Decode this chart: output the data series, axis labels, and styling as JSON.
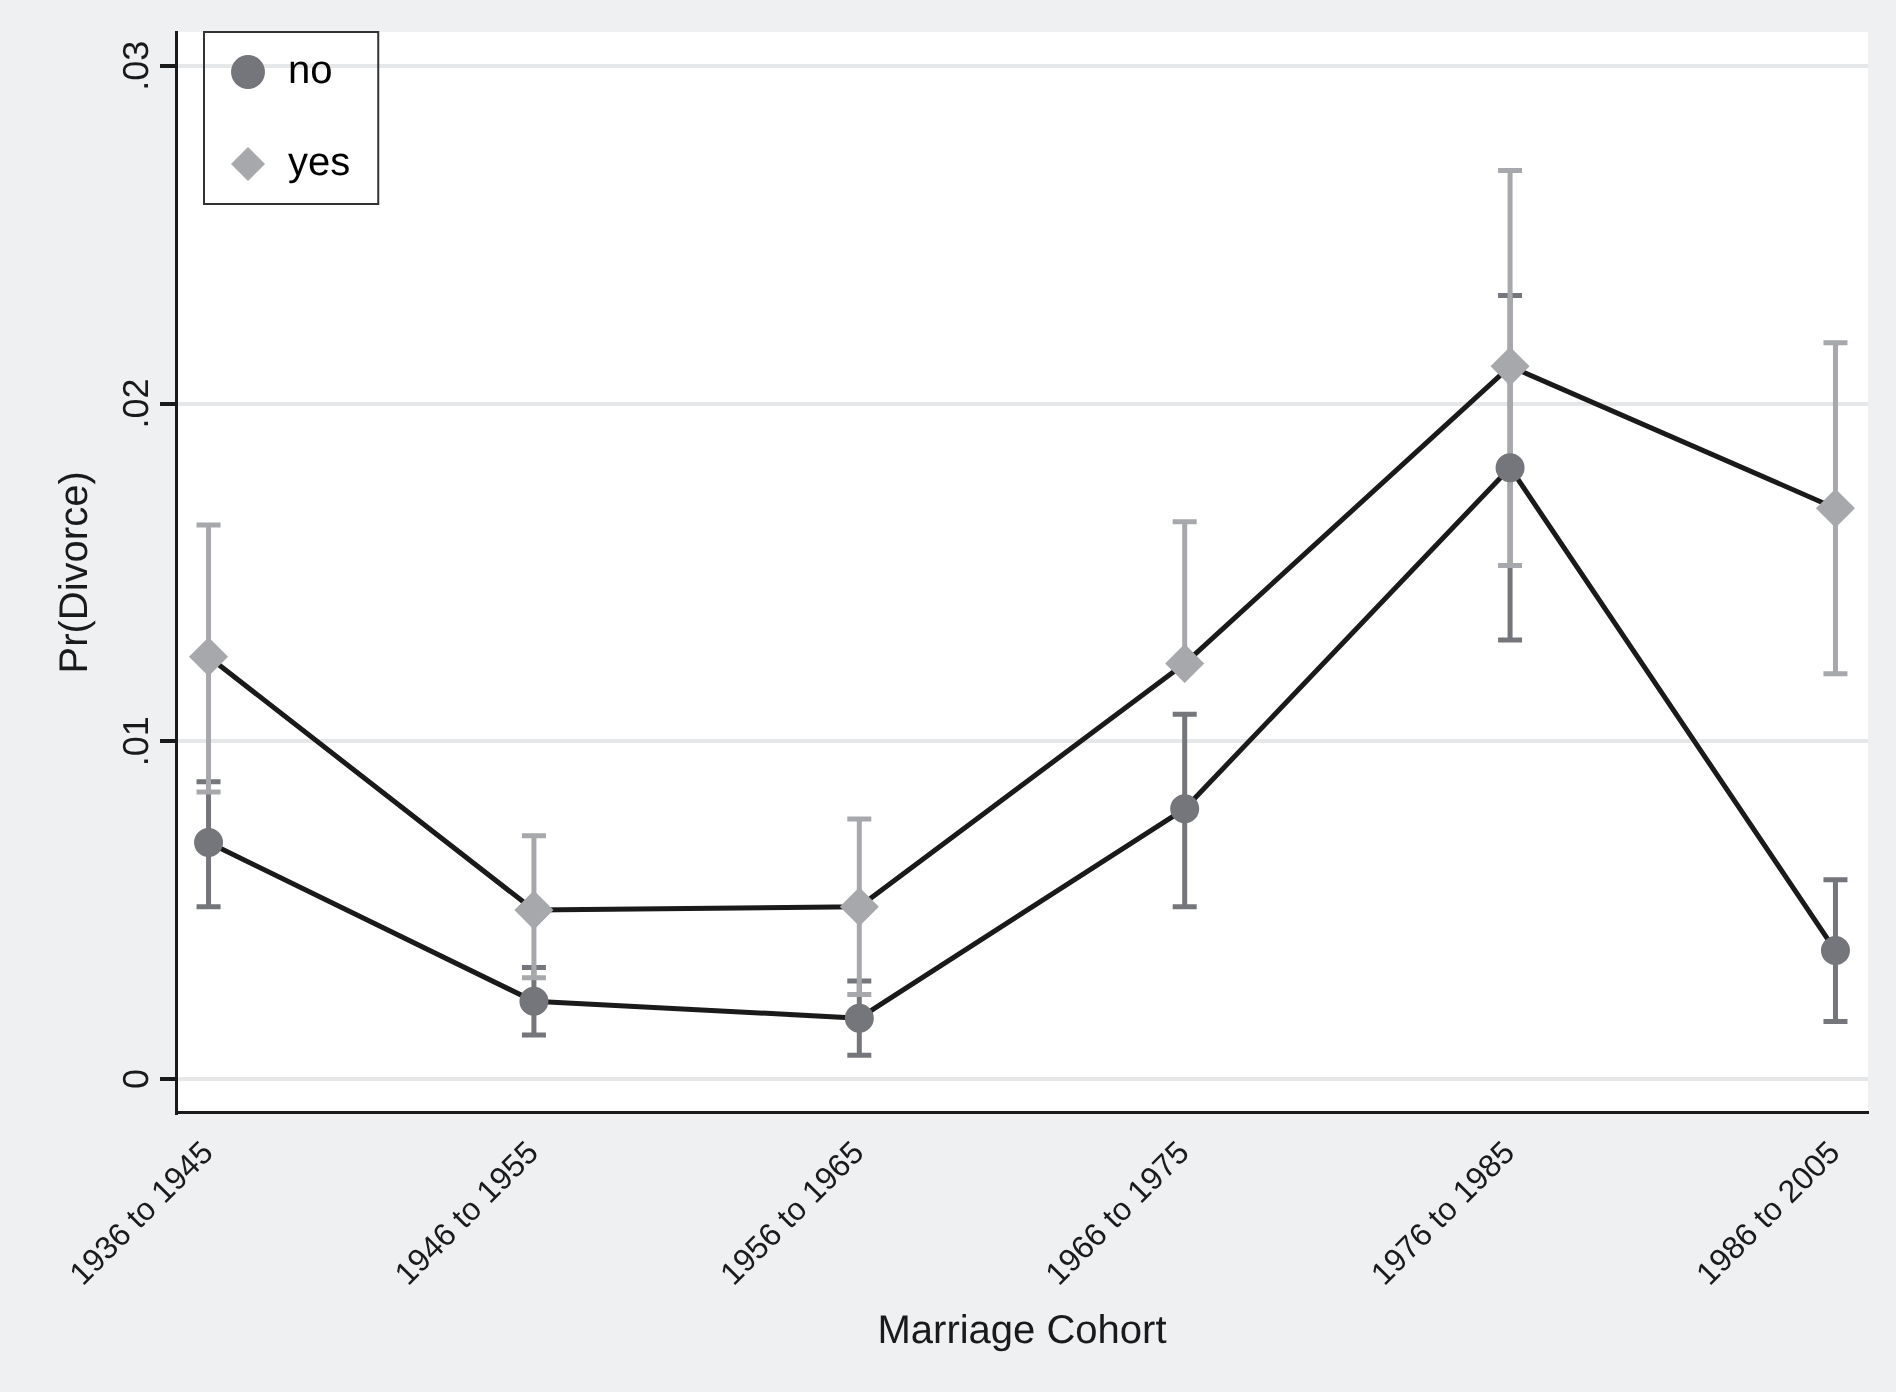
{
  "chart_data": {
    "type": "line",
    "xlabel": "Marriage Cohort",
    "ylabel": "Pr(Divorce)",
    "categories": [
      "1936 to 1945",
      "1946 to 1955",
      "1956 to 1965",
      "1966 to 1975",
      "1976 to 1985",
      "1986 to 2005"
    ],
    "series": [
      {
        "name": "no",
        "color": "#74767b",
        "marker": "circle",
        "values": [
          0.007,
          0.0023,
          0.0018,
          0.008,
          0.0181,
          0.0038
        ],
        "errors": [
          [
            0.0051,
            0.0088
          ],
          [
            0.0013,
            0.0033
          ],
          [
            0.0007,
            0.0029
          ],
          [
            0.0051,
            0.0108
          ],
          [
            0.013,
            0.0232
          ],
          [
            0.0017,
            0.0059
          ]
        ]
      },
      {
        "name": "yes",
        "color": "#a6a8ab",
        "marker": "diamond",
        "values": [
          0.0125,
          0.005,
          0.0051,
          0.0123,
          0.0211,
          0.0169
        ],
        "errors": [
          [
            0.0085,
            0.0164
          ],
          [
            0.003,
            0.0072
          ],
          [
            0.0025,
            0.0077
          ],
          [
            0.0123,
            0.0165
          ],
          [
            0.0152,
            0.0269
          ],
          [
            0.012,
            0.0218
          ]
        ]
      }
    ],
    "ylim": [
      -0.001,
      0.031
    ],
    "yticks": [
      {
        "value": 0,
        "label": "0"
      },
      {
        "value": 0.01,
        "label": ".01"
      },
      {
        "value": 0.02,
        "label": ".02"
      },
      {
        "value": 0.03,
        "label": ".03"
      }
    ],
    "grid": "y",
    "legend": "top left",
    "line_style": "solid"
  }
}
